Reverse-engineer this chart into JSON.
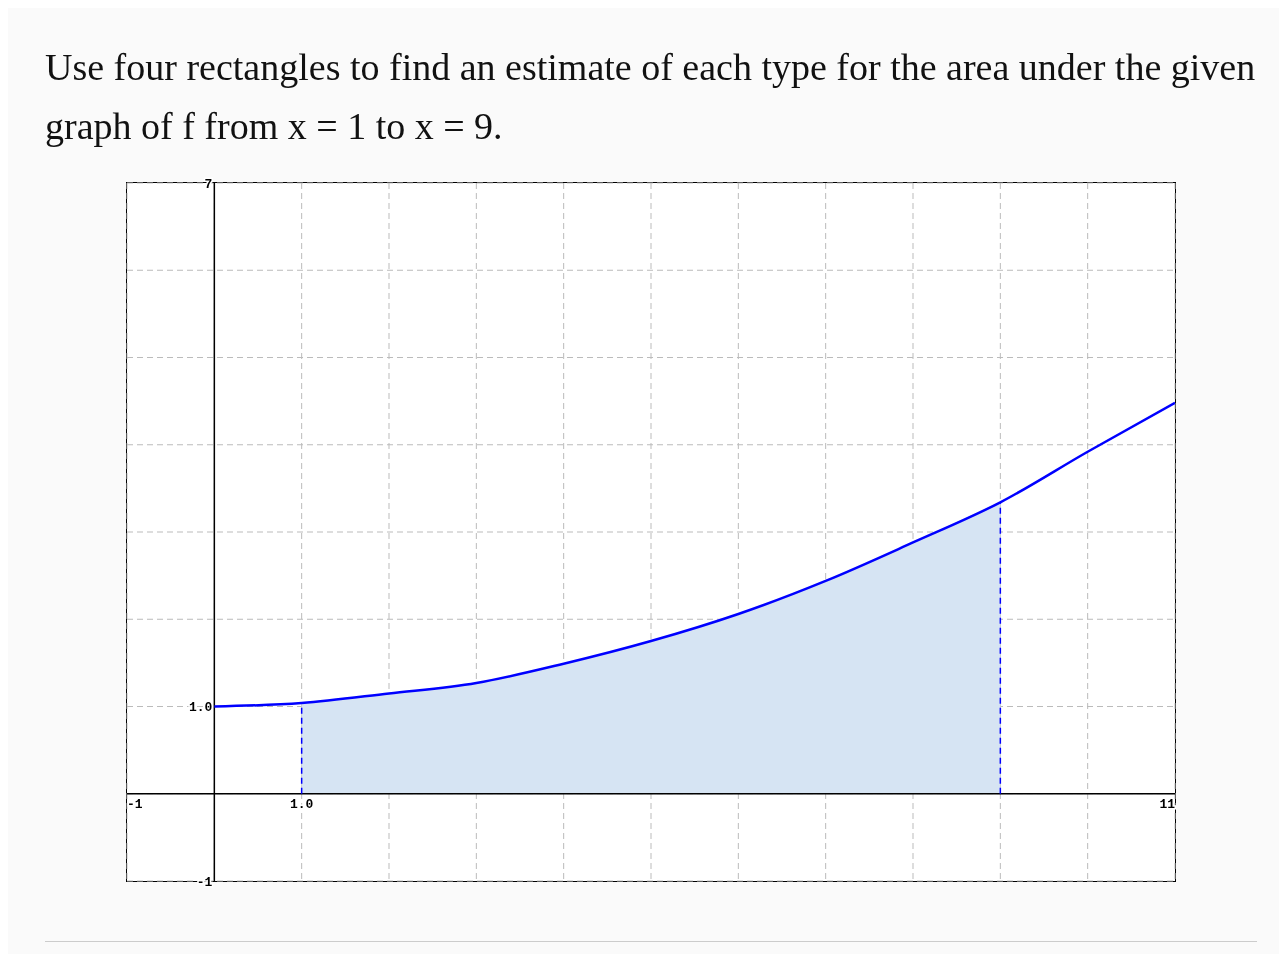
{
  "chart_data": {
    "type": "line",
    "title": "Use four rectangles to find an estimate of each type for the area under the given graph of f from x = 1 to x = 9.",
    "x": [
      0,
      1,
      2,
      3,
      4,
      5,
      6,
      7,
      8,
      9,
      10,
      11
    ],
    "series": [
      {
        "color": "#0000ff",
        "values": [
          1.0,
          1.04,
          1.15,
          1.27,
          1.49,
          1.75,
          2.06,
          2.44,
          2.88,
          3.34,
          3.92,
          4.48
        ]
      },
      {
        "type": "area",
        "color": "#d6e4f3",
        "x": [
          1,
          2,
          3,
          4,
          5,
          6,
          7,
          8,
          9
        ],
        "values": [
          1.04,
          1.15,
          1.27,
          1.49,
          1.75,
          2.06,
          2.44,
          2.88,
          3.34
        ]
      }
    ],
    "ref_lines": [
      {
        "axis": "x",
        "value": 1,
        "color": "#0000ff",
        "line_style": "dashed"
      },
      {
        "axis": "x",
        "value": 9,
        "color": "#0000ff",
        "line_style": "dashed"
      }
    ],
    "xlim": [
      -1,
      11
    ],
    "ylim": [
      -1,
      7
    ],
    "xticks": [
      -1,
      {
        "value": 0,
        "label": null
      },
      {
        "value": 1,
        "label": "1.0"
      },
      {
        "value": 2,
        "label": null
      },
      {
        "value": 3,
        "label": null
      },
      {
        "value": 4,
        "label": null
      },
      {
        "value": 5,
        "label": null
      },
      {
        "value": 6,
        "label": null
      },
      {
        "value": 7,
        "label": null
      },
      {
        "value": 8,
        "label": null
      },
      {
        "value": 9,
        "label": null
      },
      {
        "value": 10,
        "label": null
      },
      11
    ],
    "yticks": [
      -1,
      {
        "value": 0,
        "label": null
      },
      {
        "value": 1,
        "label": "1.0"
      },
      {
        "value": 2,
        "label": null
      },
      {
        "value": 3,
        "label": null
      },
      {
        "value": 4,
        "label": null
      },
      {
        "value": 5,
        "label": null
      },
      {
        "value": 6,
        "label": null
      },
      7
    ],
    "grid": true,
    "marker": "none",
    "line_style": "solid",
    "legend": false
  }
}
